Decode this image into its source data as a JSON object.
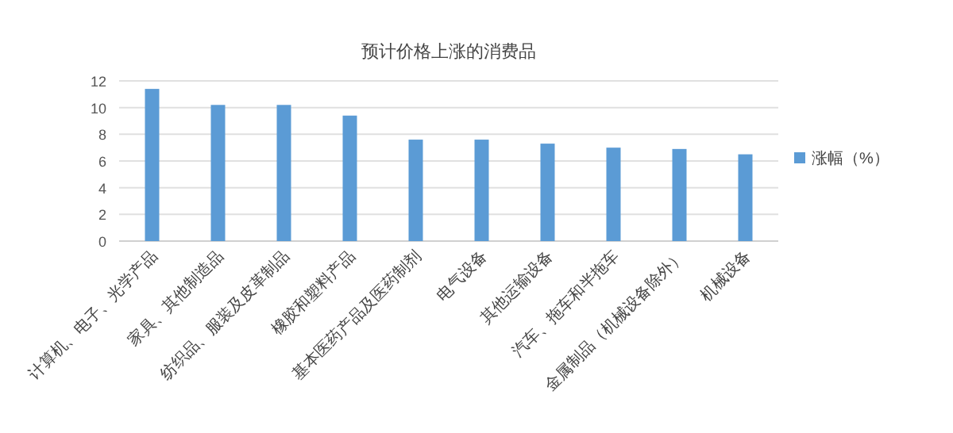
{
  "chart_data": {
    "type": "bar",
    "title": "预计价格上涨的消费品",
    "categories": [
      "计算机、电子、光学产品",
      "家具、其他制造品",
      "纺织品、服装及皮革制品",
      "橡胶和塑料产品",
      "基本医药产品及医药制剂",
      "电气设备",
      "其他运输设备",
      "汽车、拖车和半拖车",
      "金属制品（机械设备除外）",
      "机械设备"
    ],
    "series": [
      {
        "name": "涨幅（%）",
        "color": "#5b9bd5",
        "values": [
          11.4,
          10.2,
          10.2,
          9.4,
          7.6,
          7.6,
          7.3,
          7.0,
          6.9,
          6.5
        ]
      }
    ],
    "ylim": [
      0,
      12
    ],
    "yticks": [
      0,
      2,
      4,
      6,
      8,
      10,
      12
    ],
    "grid": "y",
    "legend": "right"
  }
}
